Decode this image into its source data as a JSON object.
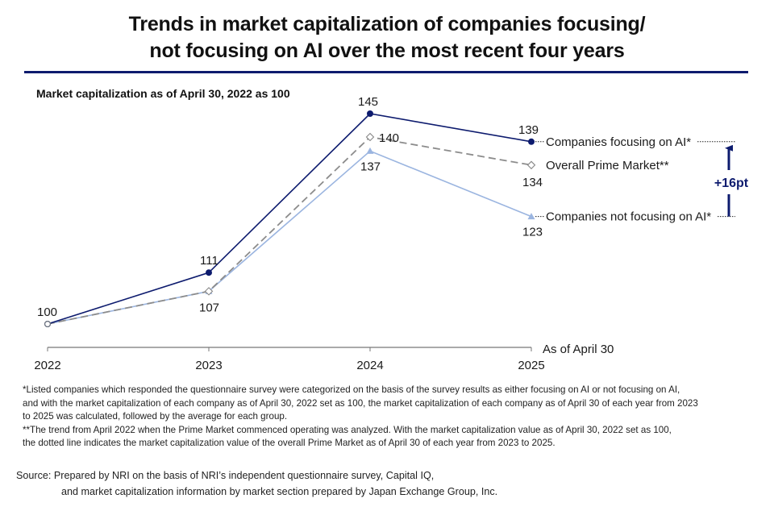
{
  "chart_data": {
    "type": "line",
    "title": "Trends in market capitalization of companies focusing/ not focusing on AI over the most recent four years",
    "title_lines": [
      "Trends in market capitalization of companies focusing/",
      "not focusing on AI over the most recent four years"
    ],
    "subtitle": "Market capitalization as of April 30, 2022 as 100",
    "x": [
      "2022",
      "2023",
      "2024",
      "2025"
    ],
    "xlabel": "As of April 30",
    "ylabel": "",
    "ylim": [
      100,
      145
    ],
    "grid": false,
    "series": [
      {
        "name": "Companies focusing on AI*",
        "values": [
          100,
          111,
          145,
          139
        ],
        "color": "#0d1b6e",
        "style": "solid",
        "marker": "circle",
        "labels": [
          "100",
          "111",
          "145",
          "139"
        ]
      },
      {
        "name": "Overall Prime Market**",
        "values": [
          100,
          107,
          140,
          134
        ],
        "color": "#8c8c8c",
        "style": "dashed",
        "marker": "diamond-open",
        "labels": [
          "",
          "107",
          "140",
          "134"
        ]
      },
      {
        "name": "Companies not focusing on AI*",
        "values": [
          100,
          107,
          137,
          123
        ],
        "color": "#9bb5e0",
        "style": "solid",
        "marker": "triangle",
        "labels": [
          "",
          "",
          "137",
          "123"
        ]
      }
    ],
    "legend": "right-end-labels",
    "annotation": {
      "text": "+16pt",
      "from_series": 2,
      "to_series": 0,
      "color": "#0d1b6e"
    }
  },
  "notes": [
    "*Listed companies which responded the questionnaire survey were categorized on the basis of the survey results as either focusing on AI or not focusing on AI,",
    "and with the market capitalization of each company as of April 30, 2022 set as 100, the market capitalization of each company as of April 30 of each year from 2023",
    "to 2025 was calculated, followed by the average for each group.",
    "**The trend from April 2022 when the Prime Market commenced operating was analyzed. With the market capitalization value as of April 30, 2022 set as 100,",
    "the dotted line indicates the market capitalization value of the overall Prime Market as of April 30 of each year from 2023 to 2025."
  ],
  "source": {
    "line1": "Source: Prepared by NRI on the basis of NRI’s independent questionnaire survey, Capital IQ,",
    "line2": "and market capitalization information by market section prepared by Japan Exchange Group, Inc."
  }
}
